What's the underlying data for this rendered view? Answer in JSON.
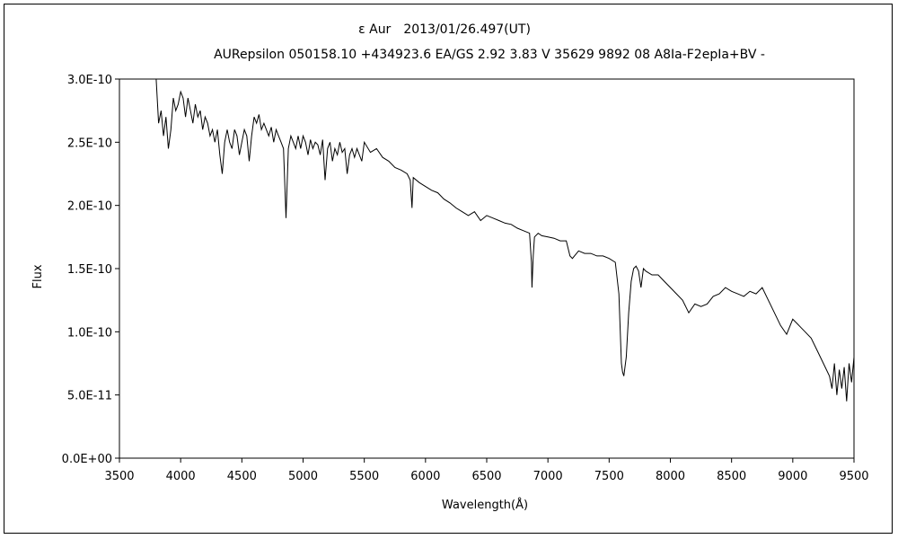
{
  "chart_data": {
    "type": "line",
    "title": "ε Aur　2013/01/26.497(UT)",
    "subtitle": "AURepsilon 050158.10 +434923.6 EA/GS 2.92 3.83 V 35629 9892 08 A8Ia-F2epIa+BV -",
    "xlabel": "Wavelength(Å)",
    "ylabel": "Flux",
    "xlim": [
      3500,
      9500
    ],
    "ylim": [
      0,
      3e-10
    ],
    "grid": false,
    "legend": "none",
    "xticks": [
      "3500",
      "4000",
      "4500",
      "5000",
      "5500",
      "6000",
      "6500",
      "7000",
      "7500",
      "8000",
      "8500",
      "9000",
      "9500"
    ],
    "yticks": [
      "0.0E+00",
      "5.0E-11",
      "1.0E-10",
      "1.5E-10",
      "2.0E-10",
      "2.5E-10",
      "3.0E-10"
    ],
    "line_color": "#000000",
    "series": [
      {
        "name": "",
        "x": [
          3800,
          3820,
          3840,
          3860,
          3880,
          3900,
          3920,
          3940,
          3960,
          3980,
          4000,
          4020,
          4040,
          4060,
          4080,
          4100,
          4120,
          4140,
          4160,
          4180,
          4200,
          4220,
          4240,
          4260,
          4280,
          4300,
          4320,
          4340,
          4360,
          4380,
          4400,
          4420,
          4440,
          4460,
          4480,
          4500,
          4520,
          4540,
          4560,
          4580,
          4600,
          4620,
          4640,
          4660,
          4680,
          4700,
          4720,
          4740,
          4760,
          4780,
          4800,
          4820,
          4840,
          4861,
          4880,
          4900,
          4920,
          4940,
          4960,
          4980,
          5000,
          5020,
          5040,
          5060,
          5080,
          5100,
          5120,
          5140,
          5160,
          5180,
          5200,
          5220,
          5240,
          5260,
          5280,
          5300,
          5320,
          5340,
          5360,
          5380,
          5400,
          5420,
          5440,
          5460,
          5480,
          5500,
          5550,
          5600,
          5650,
          5700,
          5750,
          5800,
          5850,
          5875,
          5890,
          5900,
          5950,
          6000,
          6050,
          6100,
          6150,
          6200,
          6250,
          6300,
          6350,
          6400,
          6450,
          6500,
          6550,
          6600,
          6650,
          6700,
          6750,
          6800,
          6850,
          6865,
          6870,
          6880,
          6890,
          6920,
          6950,
          7000,
          7050,
          7100,
          7150,
          7180,
          7200,
          7250,
          7300,
          7350,
          7400,
          7450,
          7500,
          7550,
          7580,
          7600,
          7610,
          7620,
          7640,
          7660,
          7680,
          7700,
          7720,
          7740,
          7760,
          7780,
          7800,
          7850,
          7900,
          7950,
          8000,
          8050,
          8100,
          8150,
          8200,
          8250,
          8300,
          8350,
          8400,
          8450,
          8500,
          8550,
          8600,
          8650,
          8700,
          8750,
          8800,
          8850,
          8900,
          8950,
          9000,
          9050,
          9100,
          9150,
          9200,
          9250,
          9300,
          9320,
          9340,
          9360,
          9380,
          9400,
          9420,
          9440,
          9460,
          9480,
          9500
        ],
        "y": [
          3e-10,
          2.65e-10,
          2.75e-10,
          2.55e-10,
          2.7e-10,
          2.45e-10,
          2.6e-10,
          2.85e-10,
          2.75e-10,
          2.8e-10,
          2.9e-10,
          2.85e-10,
          2.7e-10,
          2.85e-10,
          2.75e-10,
          2.65e-10,
          2.8e-10,
          2.7e-10,
          2.75e-10,
          2.6e-10,
          2.7e-10,
          2.65e-10,
          2.55e-10,
          2.6e-10,
          2.5e-10,
          2.6e-10,
          2.4e-10,
          2.25e-10,
          2.5e-10,
          2.6e-10,
          2.5e-10,
          2.45e-10,
          2.6e-10,
          2.55e-10,
          2.4e-10,
          2.5e-10,
          2.6e-10,
          2.55e-10,
          2.35e-10,
          2.55e-10,
          2.7e-10,
          2.65e-10,
          2.72e-10,
          2.6e-10,
          2.65e-10,
          2.6e-10,
          2.55e-10,
          2.62e-10,
          2.5e-10,
          2.6e-10,
          2.55e-10,
          2.5e-10,
          2.45e-10,
          1.9e-10,
          2.45e-10,
          2.55e-10,
          2.5e-10,
          2.45e-10,
          2.55e-10,
          2.45e-10,
          2.55e-10,
          2.5e-10,
          2.4e-10,
          2.52e-10,
          2.45e-10,
          2.5e-10,
          2.48e-10,
          2.4e-10,
          2.52e-10,
          2.2e-10,
          2.45e-10,
          2.5e-10,
          2.35e-10,
          2.45e-10,
          2.4e-10,
          2.5e-10,
          2.42e-10,
          2.45e-10,
          2.25e-10,
          2.4e-10,
          2.45e-10,
          2.38e-10,
          2.45e-10,
          2.4e-10,
          2.35e-10,
          2.5e-10,
          2.42e-10,
          2.45e-10,
          2.38e-10,
          2.35e-10,
          2.3e-10,
          2.28e-10,
          2.25e-10,
          2.2e-10,
          1.98e-10,
          2.22e-10,
          2.18e-10,
          2.15e-10,
          2.12e-10,
          2.1e-10,
          2.05e-10,
          2.02e-10,
          1.98e-10,
          1.95e-10,
          1.92e-10,
          1.95e-10,
          1.88e-10,
          1.92e-10,
          1.9e-10,
          1.88e-10,
          1.86e-10,
          1.85e-10,
          1.82e-10,
          1.8e-10,
          1.78e-10,
          1.55e-10,
          1.35e-10,
          1.6e-10,
          1.75e-10,
          1.78e-10,
          1.76e-10,
          1.75e-10,
          1.74e-10,
          1.72e-10,
          1.72e-10,
          1.6e-10,
          1.58e-10,
          1.64e-10,
          1.62e-10,
          1.62e-10,
          1.6e-10,
          1.6e-10,
          1.58e-10,
          1.55e-10,
          1.3e-10,
          7.5e-11,
          6.8e-11,
          6.5e-11,
          8e-11,
          1.15e-10,
          1.4e-10,
          1.5e-10,
          1.52e-10,
          1.48e-10,
          1.35e-10,
          1.5e-10,
          1.48e-10,
          1.45e-10,
          1.45e-10,
          1.4e-10,
          1.35e-10,
          1.3e-10,
          1.25e-10,
          1.15e-10,
          1.22e-10,
          1.2e-10,
          1.22e-10,
          1.28e-10,
          1.3e-10,
          1.35e-10,
          1.32e-10,
          1.3e-10,
          1.28e-10,
          1.32e-10,
          1.3e-10,
          1.35e-10,
          1.25e-10,
          1.15e-10,
          1.05e-10,
          9.8e-11,
          1.1e-10,
          1.05e-10,
          1e-10,
          9.5e-11,
          8.5e-11,
          7.5e-11,
          6.5e-11,
          5.5e-11,
          7.5e-11,
          5e-11,
          7e-11,
          5.5e-11,
          7.2e-11,
          4.5e-11,
          7.5e-11,
          6e-11,
          8e-11
        ]
      }
    ]
  }
}
